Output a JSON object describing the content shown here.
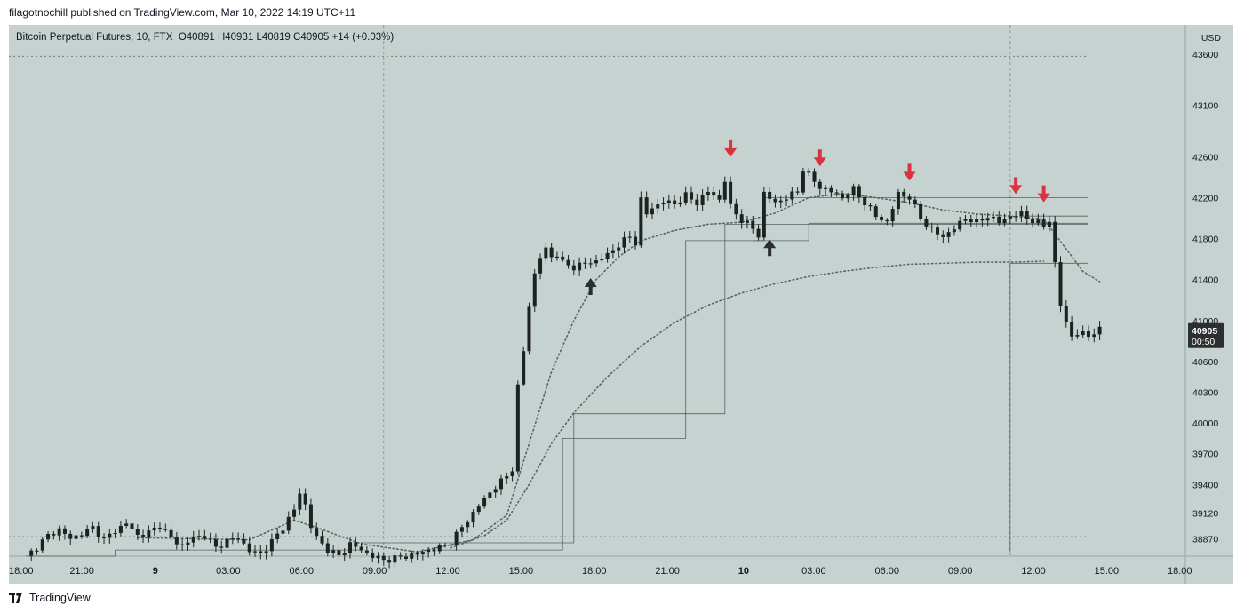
{
  "publisher_line": "filagotnochill published on TradingView.com, Mar 10, 2022 14:19 UTC+11",
  "footer": {
    "brand": "TradingView",
    "logo_icon": "tradingview-logo-icon"
  },
  "colors": {
    "background": "#c5d2cf",
    "candle": "#1e2121",
    "sell_arrow": "#d8343f",
    "buy_arrow": "#2a2e2e",
    "price_label_bg": "#2b2f30"
  },
  "chart_data": {
    "type": "candlestick",
    "title": "Bitcoin Perpetual Futures, 10, FTX",
    "ohlc_readout": {
      "O": "O40891",
      "H": "H40931",
      "L": "L40819",
      "C": "C40905",
      "change": "+14 (+0.03%)"
    },
    "currency": "USD",
    "ylim": [
      38700,
      43800
    ],
    "y_ticks": [
      "43600",
      "43100",
      "42600",
      "42200",
      "41800",
      "41400",
      "41000",
      "40600",
      "40300",
      "40000",
      "39700",
      "39400",
      "39120",
      "38870"
    ],
    "x_ticks": [
      "18:00",
      "21:00",
      "9",
      "03:00",
      "06:00",
      "09:00",
      "12:00",
      "15:00",
      "18:00",
      "21:00",
      "10",
      "03:00",
      "06:00",
      "09:00",
      "12:00",
      "15:00",
      "18:00"
    ],
    "last_price": "40905",
    "countdown": "00:50",
    "price_series": [
      [
        0,
        38690
      ],
      [
        2,
        38790
      ],
      [
        4,
        38900
      ],
      [
        6,
        38960
      ],
      [
        8,
        38870
      ],
      [
        10,
        38920
      ],
      [
        12,
        38980
      ],
      [
        14,
        38860
      ],
      [
        16,
        38950
      ],
      [
        18,
        39020
      ],
      [
        20,
        38900
      ],
      [
        22,
        38930
      ],
      [
        24,
        39000
      ],
      [
        26,
        38870
      ],
      [
        28,
        38800
      ],
      [
        30,
        38880
      ],
      [
        32,
        38900
      ],
      [
        34,
        38780
      ],
      [
        36,
        38850
      ],
      [
        38,
        38880
      ],
      [
        40,
        38750
      ],
      [
        42,
        38720
      ],
      [
        44,
        38840
      ],
      [
        46,
        38980
      ],
      [
        48,
        39150
      ],
      [
        49,
        39320
      ],
      [
        50,
        39200
      ],
      [
        51,
        38990
      ],
      [
        52,
        38880
      ],
      [
        54,
        38760
      ],
      [
        56,
        38700
      ],
      [
        58,
        38820
      ],
      [
        60,
        38760
      ],
      [
        62,
        38700
      ],
      [
        64,
        38660
      ],
      [
        66,
        38680
      ],
      [
        68,
        38700
      ],
      [
        70,
        38720
      ],
      [
        72,
        38760
      ],
      [
        74,
        38780
      ],
      [
        76,
        38840
      ],
      [
        78,
        38980
      ],
      [
        80,
        39120
      ],
      [
        82,
        39260
      ],
      [
        84,
        39380
      ],
      [
        86,
        39480
      ],
      [
        87,
        39560
      ],
      [
        88,
        40350
      ],
      [
        89,
        40700
      ],
      [
        90,
        41150
      ],
      [
        91,
        41450
      ],
      [
        92,
        41620
      ],
      [
        93,
        41700
      ],
      [
        94,
        41620
      ],
      [
        95,
        41650
      ],
      [
        96,
        41560
      ],
      [
        98,
        41520
      ],
      [
        100,
        41560
      ],
      [
        102,
        41580
      ],
      [
        104,
        41640
      ],
      [
        106,
        41740
      ],
      [
        108,
        41820
      ],
      [
        109,
        41760
      ],
      [
        110,
        42180
      ],
      [
        111,
        42040
      ],
      [
        112,
        42100
      ],
      [
        114,
        42160
      ],
      [
        116,
        42140
      ],
      [
        118,
        42220
      ],
      [
        120,
        42150
      ],
      [
        122,
        42260
      ],
      [
        124,
        42180
      ],
      [
        125,
        42370
      ],
      [
        126,
        42110
      ],
      [
        128,
        41980
      ],
      [
        130,
        41900
      ],
      [
        131,
        41830
      ],
      [
        132,
        42240
      ],
      [
        134,
        42150
      ],
      [
        136,
        42200
      ],
      [
        138,
        42260
      ],
      [
        139,
        42480
      ],
      [
        140,
        42420
      ],
      [
        142,
        42300
      ],
      [
        144,
        42260
      ],
      [
        146,
        42200
      ],
      [
        148,
        42280
      ],
      [
        150,
        42150
      ],
      [
        152,
        42020
      ],
      [
        154,
        41960
      ],
      [
        156,
        42240
      ],
      [
        158,
        42200
      ],
      [
        160,
        42000
      ],
      [
        162,
        41880
      ],
      [
        164,
        41820
      ],
      [
        166,
        41900
      ],
      [
        168,
        42000
      ],
      [
        170,
        41960
      ],
      [
        172,
        42020
      ],
      [
        174,
        41960
      ],
      [
        176,
        42020
      ],
      [
        178,
        42040
      ],
      [
        180,
        41970
      ],
      [
        182,
        41930
      ],
      [
        183,
        41980
      ],
      [
        184,
        41550
      ],
      [
        185,
        41150
      ],
      [
        186,
        40980
      ],
      [
        187,
        40850
      ],
      [
        188,
        40870
      ],
      [
        190,
        40860
      ],
      [
        192,
        40905
      ]
    ],
    "ma_fast": [
      [
        20,
        38880
      ],
      [
        40,
        38860
      ],
      [
        48,
        39050
      ],
      [
        52,
        38980
      ],
      [
        60,
        38820
      ],
      [
        70,
        38740
      ],
      [
        80,
        38860
      ],
      [
        86,
        39100
      ],
      [
        90,
        39800
      ],
      [
        94,
        40500
      ],
      [
        98,
        41000
      ],
      [
        102,
        41400
      ],
      [
        106,
        41620
      ],
      [
        110,
        41780
      ],
      [
        116,
        41880
      ],
      [
        122,
        41940
      ],
      [
        128,
        41960
      ],
      [
        134,
        42050
      ],
      [
        140,
        42200
      ],
      [
        146,
        42240
      ],
      [
        152,
        42200
      ],
      [
        158,
        42150
      ],
      [
        164,
        42080
      ],
      [
        170,
        42040
      ],
      [
        176,
        42020
      ],
      [
        182,
        41990
      ],
      [
        186,
        41700
      ],
      [
        189,
        41480
      ],
      [
        192,
        41380
      ]
    ],
    "ma_slow": [
      [
        76,
        38780
      ],
      [
        82,
        38900
      ],
      [
        86,
        39050
      ],
      [
        90,
        39400
      ],
      [
        94,
        39800
      ],
      [
        98,
        40100
      ],
      [
        104,
        40450
      ],
      [
        110,
        40750
      ],
      [
        116,
        40980
      ],
      [
        122,
        41150
      ],
      [
        128,
        41270
      ],
      [
        134,
        41360
      ],
      [
        140,
        41430
      ],
      [
        146,
        41480
      ],
      [
        152,
        41520
      ],
      [
        158,
        41550
      ],
      [
        164,
        41560
      ],
      [
        170,
        41570
      ],
      [
        176,
        41570
      ],
      [
        182,
        41580
      ]
    ],
    "step_lines": [
      [
        [
          0,
          38700
        ],
        [
          16,
          38700
        ],
        [
          16,
          38760
        ],
        [
          60,
          38760
        ],
        [
          60,
          38830
        ],
        [
          72,
          38830
        ],
        [
          72,
          38830
        ],
        [
          98,
          38830
        ],
        [
          98,
          40090
        ],
        [
          125,
          40090
        ],
        [
          125,
          41940
        ],
        [
          190,
          41940
        ]
      ],
      [
        [
          74,
          38760
        ],
        [
          96,
          38760
        ],
        [
          96,
          39850
        ],
        [
          118,
          39850
        ],
        [
          118,
          41780
        ],
        [
          140,
          41780
        ],
        [
          140,
          41950
        ],
        [
          190,
          41950
        ]
      ],
      [
        [
          130,
          41780
        ],
        [
          132,
          41780
        ],
        [
          132,
          42200
        ],
        [
          190,
          42200
        ]
      ],
      [
        [
          176,
          38740
        ],
        [
          176,
          41560
        ],
        [
          190,
          41560
        ]
      ],
      [
        [
          178,
          42020
        ],
        [
          190,
          42020
        ]
      ]
    ],
    "dotted_levels": [
      43580,
      38890
    ],
    "sell_signals": [
      [
        126,
        42630
      ],
      [
        142,
        42540
      ],
      [
        158,
        42400
      ],
      [
        177,
        42270
      ],
      [
        182,
        42190
      ]
    ],
    "buy_signals": [
      [
        101,
        41380
      ],
      [
        133,
        41760
      ]
    ]
  }
}
